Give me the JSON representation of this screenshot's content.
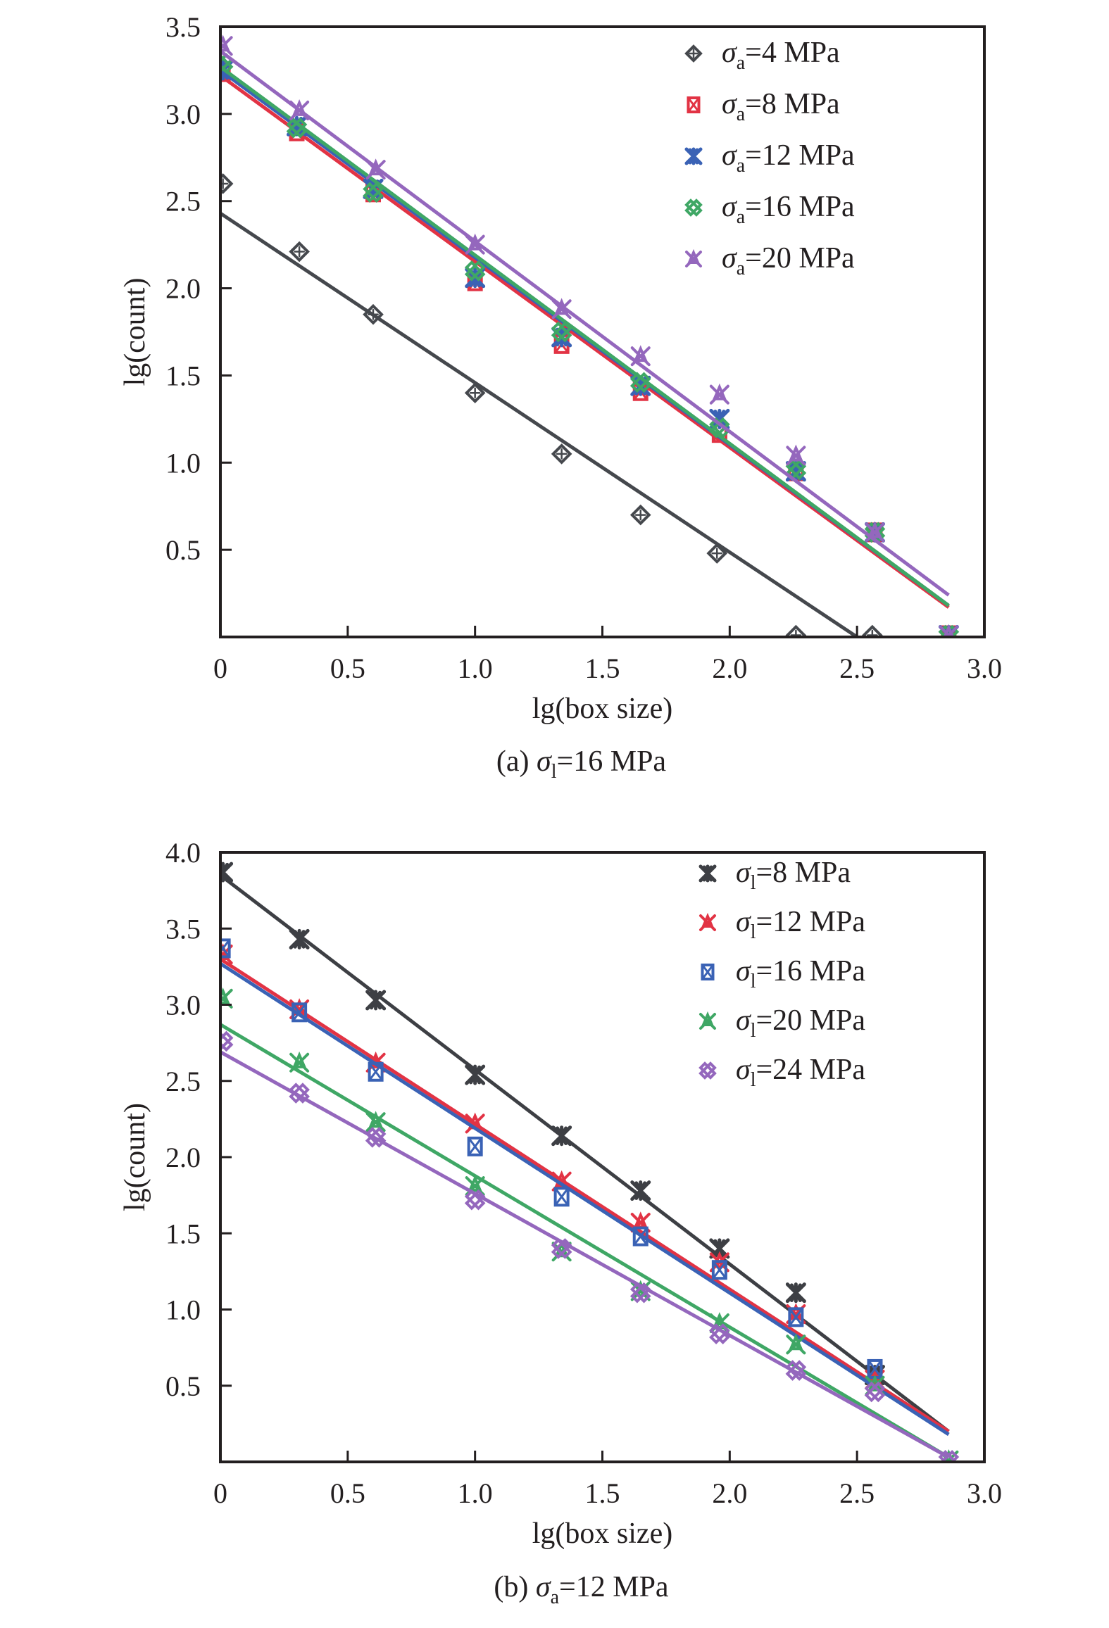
{
  "chart_data": [
    {
      "type": "scatter",
      "panel": "a",
      "caption": {
        "prefix": "(a) ",
        "symbol": "σ",
        "sub": "l",
        "suffix": "=16 MPa"
      },
      "xlabel": "lg(box size)",
      "ylabel": "lg(count)",
      "xlim": [
        0,
        3.0
      ],
      "ylim": [
        0,
        3.5
      ],
      "xticks": [
        "0",
        "0.5",
        "1.0",
        "1.5",
        "2.0",
        "2.5",
        "3.0"
      ],
      "xtick_values": [
        0,
        0.5,
        1.0,
        1.5,
        2.0,
        2.5,
        3.0
      ],
      "yticks": [
        "0.5",
        "1.0",
        "1.5",
        "2.0",
        "2.5",
        "3.0",
        "3.5"
      ],
      "ytick_values": [
        0.5,
        1.0,
        1.5,
        2.0,
        2.5,
        3.0,
        3.5
      ],
      "grid": false,
      "legend_position": "top-right",
      "series": [
        {
          "name": "σa=4 MPa",
          "symbol": "σ",
          "sub": "a",
          "label_suffix": "=4 MPa",
          "color": "#45484d",
          "marker": "diamond-plus",
          "x": [
            0.01,
            0.31,
            0.6,
            1.0,
            1.34,
            1.65,
            1.95,
            2.26,
            2.56
          ],
          "y": [
            2.6,
            2.21,
            1.85,
            1.4,
            1.05,
            0.7,
            0.48,
            0.01,
            0.01
          ],
          "fit": {
            "x": [
              0,
              2.5
            ],
            "y": [
              2.43,
              0.0
            ]
          }
        },
        {
          "name": "σa=8 MPa",
          "symbol": "σ",
          "sub": "a",
          "label_suffix": "=8 MPa",
          "color": "#e23344",
          "marker": "box-x",
          "x": [
            0.01,
            0.3,
            0.6,
            1.0,
            1.34,
            1.65,
            1.96,
            2.26,
            2.57,
            2.86
          ],
          "y": [
            3.24,
            2.9,
            2.55,
            2.04,
            1.68,
            1.41,
            1.17,
            0.95,
            0.6,
            0.01
          ],
          "fit": {
            "x": [
              0,
              2.86
            ],
            "y": [
              3.22,
              0.17
            ]
          }
        },
        {
          "name": "σa=12 MPa",
          "symbol": "σ",
          "sub": "a",
          "label_suffix": "=12 MPa",
          "color": "#3a62b5",
          "marker": "asterisk",
          "x": [
            0.01,
            0.3,
            0.6,
            1.0,
            1.34,
            1.65,
            1.96,
            2.26,
            2.57,
            2.86
          ],
          "y": [
            3.25,
            2.93,
            2.57,
            2.06,
            1.72,
            1.44,
            1.25,
            0.95,
            0.6,
            0.01
          ],
          "fit": {
            "x": [
              0,
              2.86
            ],
            "y": [
              3.25,
              0.18
            ]
          }
        },
        {
          "name": "σa=16 MPa",
          "symbol": "σ",
          "sub": "a",
          "label_suffix": "=16 MPa",
          "color": "#3fa765",
          "marker": "lattice",
          "x": [
            0.01,
            0.3,
            0.6,
            1.0,
            1.34,
            1.65,
            1.96,
            2.26,
            2.57,
            2.86
          ],
          "y": [
            3.29,
            2.92,
            2.55,
            2.1,
            1.75,
            1.46,
            1.2,
            0.96,
            0.6,
            0.01
          ],
          "fit": {
            "x": [
              0,
              2.86
            ],
            "y": [
              3.27,
              0.18
            ]
          }
        },
        {
          "name": "σa=20 MPa",
          "symbol": "σ",
          "sub": "a",
          "label_suffix": "=20 MPa",
          "color": "#9467bd",
          "marker": "x-tri",
          "x": [
            0.01,
            0.31,
            0.61,
            1.0,
            1.34,
            1.65,
            1.96,
            2.26,
            2.57,
            2.86
          ],
          "y": [
            3.39,
            3.02,
            2.68,
            2.25,
            1.88,
            1.61,
            1.39,
            1.04,
            0.6,
            0.01
          ],
          "fit": {
            "x": [
              0,
              2.86
            ],
            "y": [
              3.36,
              0.24
            ]
          }
        }
      ]
    },
    {
      "type": "scatter",
      "panel": "b",
      "caption": {
        "prefix": "(b) ",
        "symbol": "σ",
        "sub": "a",
        "suffix": "=12 MPa"
      },
      "xlabel": "lg(box size)",
      "ylabel": "lg(count)",
      "xlim": [
        0,
        3.0
      ],
      "ylim": [
        0,
        4.0
      ],
      "xticks": [
        "0",
        "0.5",
        "1.0",
        "1.5",
        "2.0",
        "2.5",
        "3.0"
      ],
      "xtick_values": [
        0,
        0.5,
        1.0,
        1.5,
        2.0,
        2.5,
        3.0
      ],
      "yticks": [
        "0.5",
        "1.0",
        "1.5",
        "2.0",
        "2.5",
        "3.0",
        "3.5",
        "4.0"
      ],
      "ytick_values": [
        0.5,
        1.0,
        1.5,
        2.0,
        2.5,
        3.0,
        3.5,
        4.0
      ],
      "grid": false,
      "legend_position": "top-right",
      "series": [
        {
          "name": "σl=8 MPa",
          "symbol": "σ",
          "sub": "l",
          "label_suffix": "=8 MPa",
          "color": "#3d3f44",
          "marker": "asterisk",
          "x": [
            0.01,
            0.31,
            0.61,
            1.0,
            1.34,
            1.65,
            1.96,
            2.26,
            2.57
          ],
          "y": [
            3.87,
            3.43,
            3.03,
            2.54,
            2.14,
            1.78,
            1.4,
            1.11,
            0.57
          ],
          "fit": {
            "x": [
              0,
              2.86
            ],
            "y": [
              3.85,
              0.2
            ]
          }
        },
        {
          "name": "σl=12 MPa",
          "symbol": "σ",
          "sub": "l",
          "label_suffix": "=12 MPa",
          "color": "#e23344",
          "marker": "x-tri",
          "x": [
            0.01,
            0.31,
            0.61,
            1.0,
            1.34,
            1.65,
            1.96,
            2.26,
            2.57
          ],
          "y": [
            3.33,
            2.97,
            2.62,
            2.22,
            1.84,
            1.57,
            1.31,
            0.97,
            0.54
          ],
          "fit": {
            "x": [
              0,
              2.86
            ],
            "y": [
              3.3,
              0.2
            ]
          }
        },
        {
          "name": "σl=16 MPa",
          "symbol": "σ",
          "sub": "l",
          "label_suffix": "=16 MPa",
          "color": "#3a62b5",
          "marker": "box-x",
          "x": [
            0.01,
            0.31,
            0.61,
            1.0,
            1.34,
            1.65,
            1.96,
            2.26,
            2.57
          ],
          "y": [
            3.37,
            2.95,
            2.56,
            2.07,
            1.74,
            1.48,
            1.26,
            0.95,
            0.61
          ],
          "fit": {
            "x": [
              0,
              2.86
            ],
            "y": [
              3.27,
              0.18
            ]
          }
        },
        {
          "name": "σl=20 MPa",
          "symbol": "σ",
          "sub": "l",
          "label_suffix": "=20 MPa",
          "color": "#3fa765",
          "marker": "x-tri",
          "x": [
            0.01,
            0.31,
            0.61,
            1.0,
            1.34,
            1.65,
            1.96,
            2.26,
            2.57,
            2.86
          ],
          "y": [
            3.04,
            2.62,
            2.23,
            1.81,
            1.38,
            1.12,
            0.91,
            0.77,
            0.5,
            0.01
          ],
          "fit": {
            "x": [
              0,
              2.86
            ],
            "y": [
              2.87,
              0.03
            ]
          }
        },
        {
          "name": "σl=24 MPa",
          "symbol": "σ",
          "sub": "l",
          "label_suffix": "=24 MPa",
          "color": "#9467bd",
          "marker": "lattice",
          "x": [
            0.01,
            0.31,
            0.61,
            1.0,
            1.34,
            1.65,
            1.96,
            2.26,
            2.57,
            2.86
          ],
          "y": [
            2.76,
            2.42,
            2.13,
            1.72,
            1.4,
            1.11,
            0.84,
            0.6,
            0.46,
            0.01
          ],
          "fit": {
            "x": [
              0,
              2.86
            ],
            "y": [
              2.69,
              0.03
            ]
          }
        }
      ]
    }
  ]
}
